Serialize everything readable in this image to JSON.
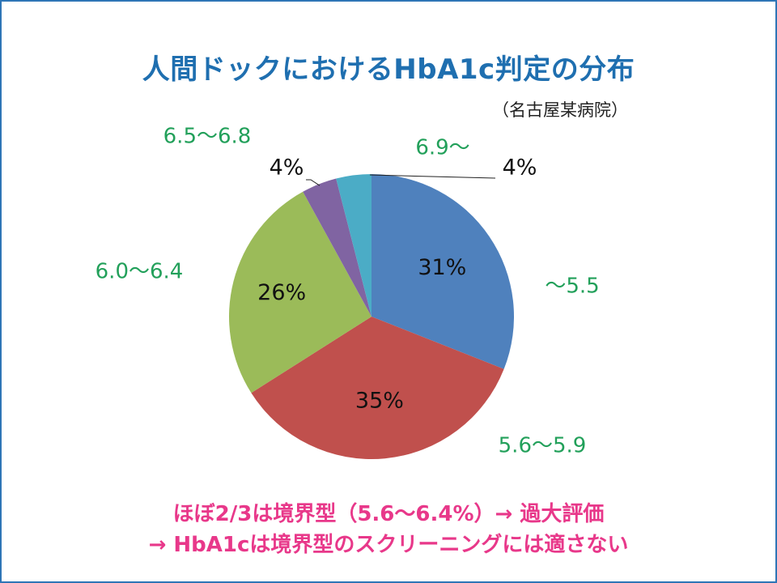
{
  "slide": {
    "title": "人間ドックにおけるHbA1c判定の分布",
    "subtitle": "（名古屋某病院）",
    "notes": [
      "ほぼ2/3は境界型（5.6～6.4%）→ 過大評価",
      "→ HbA1cは境界型のスクリーニングには適さない"
    ]
  },
  "chart_data": {
    "type": "pie",
    "title": "人間ドックにおけるHbA1c判定の分布",
    "slices": [
      {
        "category": "～5.5",
        "value": 31,
        "label": "31%",
        "color": "#4f81bd"
      },
      {
        "category": "5.6～5.9",
        "value": 35,
        "label": "35%",
        "color": "#c0504d"
      },
      {
        "category": "6.0～6.4",
        "value": 26,
        "label": "26%",
        "color": "#9bbb59"
      },
      {
        "category": "6.5～6.8",
        "value": 4,
        "label": "4%",
        "color": "#8064a2"
      },
      {
        "category": "6.9～",
        "value": 4,
        "label": "4%",
        "color": "#4bacc6"
      }
    ],
    "start": "12 o'clock",
    "direction": "clockwise",
    "category_label_color": "#22a05a",
    "value_label_color": "#111111"
  }
}
